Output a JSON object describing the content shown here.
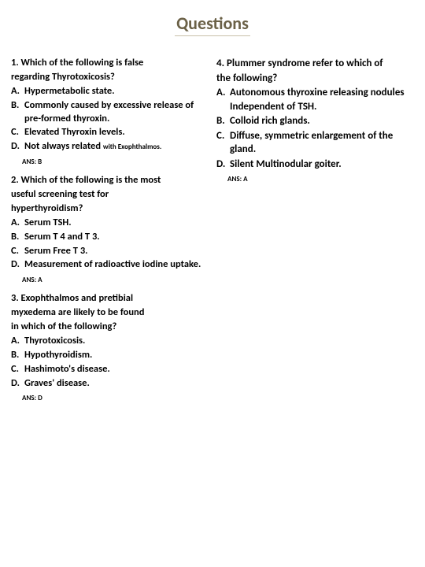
{
  "title": "Questions",
  "colors": {
    "title": "#6b6147",
    "title_underline": "#c8c0a8",
    "text": "#000000",
    "background": "#ffffff"
  },
  "typography": {
    "title_size": 22,
    "body_size": 12.5,
    "q4_size": 13,
    "sub_size": 9,
    "ans_size": 9,
    "weight": "bold"
  },
  "q1": {
    "stem1": "1. Which of the following is false",
    "stem2": "regarding Thyrotoxicosis?",
    "a_l": "A.",
    "a": "Hypermetabolic state.",
    "b_l": "B.",
    "b": "Commonly caused by excessive release of pre-formed thyroxin.",
    "c_l": "C.",
    "c": "Elevated Thyroxin levels.",
    "d_l": "D.",
    "d_main": "Not always related ",
    "d_sub": "with Exophthalmos.",
    "ans": "ANS: B"
  },
  "q2": {
    "stem1": "2. Which of the following is the most",
    "stem2": "useful screening test for",
    "stem3": "hyperthyroidism?",
    "a_l": "A.",
    "a": "Serum TSH.",
    "b_l": "B.",
    "b": "Serum T 4 and T 3.",
    "c_l": "C.",
    "c": "Serum Free T 3.",
    "d_l": "D.",
    "d": "Measurement of radioactive iodine uptake.",
    "ans": "ANS: A"
  },
  "q3": {
    "stem1": "3. Exophthalmos and pretibial",
    "stem2": "myxedema are likely to be found",
    "stem3": "in which of the following?",
    "a_l": "A.",
    "a": "Thyrotoxicosis.",
    "b_l": "B.",
    "b": "Hypothyroidism.",
    "c_l": "C.",
    "c": "Hashimoto's disease.",
    "d_l": "D.",
    "d": "Graves' disease.",
    "ans": "ANS: D"
  },
  "q4": {
    "stem1": "4. Plummer syndrome refer to which of",
    "stem2": "the following?",
    "a_l": "A.",
    "a": "Autonomous thyroxine releasing nodules Independent of TSH.",
    "b_l": "B.",
    "b": "Colloid rich glands.",
    "c_l": "C.",
    "c": "Diffuse, symmetric enlargement of the gland.",
    "d_l": "D.",
    "d": "Silent Multinodular goiter.",
    "ans": "ANS: A"
  }
}
